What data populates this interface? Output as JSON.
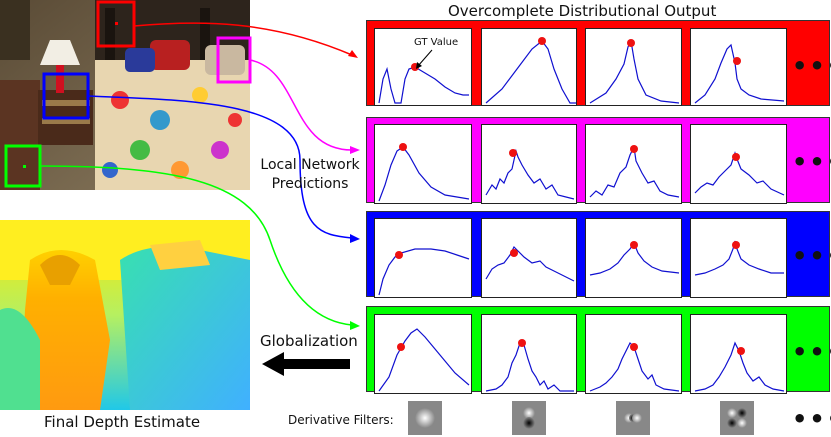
{
  "title": "Overcomplete Distributional Output",
  "gt_label": "GT Value",
  "local_predictions_label": [
    "Local Network",
    "Predictions"
  ],
  "globalization_label": "Globalization",
  "final_depth_label": "Final Depth Estimate",
  "derivative_filters_label": "Derivative Filters:",
  "ellipsis": "•••",
  "row_colors": [
    "#ff0000",
    "#ff00ff",
    "#0000ff",
    "#00ff00"
  ],
  "icons": [
    "bedroom-photo",
    "depth-map",
    "arrow-left-icon",
    "gaussian-filter-icon"
  ]
}
